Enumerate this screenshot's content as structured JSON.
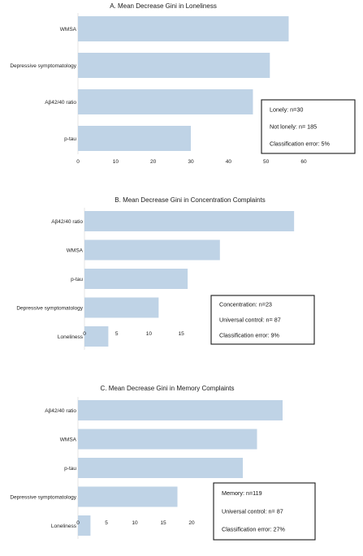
{
  "chart_data": [
    {
      "type": "bar",
      "orientation": "horizontal",
      "title": "A. Mean Decrease Gini in Loneliness",
      "categories": [
        "WMSA",
        "Depressive symptomatology",
        "Aβ42/40 ratio",
        "p-tau"
      ],
      "values": [
        56,
        51,
        46.5,
        30
      ],
      "xlim": [
        0,
        60
      ],
      "xticks": [
        0,
        10,
        20,
        30,
        40,
        50,
        60
      ],
      "bar_color": "#bfd3e6",
      "legend_placement": "bottom-right",
      "info_box": [
        "Lonely: n=30",
        "Not lonely: n= 185",
        "Classification error: 5%"
      ]
    },
    {
      "type": "bar",
      "orientation": "horizontal",
      "title": "B. Mean Decrease Gini in Concentration Complaints",
      "categories": [
        "Aβ42/40 ratio",
        "WMSA",
        "p-tau",
        "Depressive symptomatology",
        "Loneliness"
      ],
      "values": [
        32.5,
        21,
        16,
        11.5,
        3.7
      ],
      "xlim": [
        0,
        35
      ],
      "xticks": [
        0,
        5,
        10,
        15,
        20,
        25,
        30,
        35
      ],
      "bar_color": "#bfd3e6",
      "legend_placement": "bottom-right",
      "info_box": [
        "Concentration: n=23",
        "Universal control: n= 87",
        "Classification error: 9%"
      ]
    },
    {
      "type": "bar",
      "orientation": "horizontal",
      "title": "C. Mean Decrease Gini in Memory Complaints",
      "categories": [
        "Aβ42/40 ratio",
        "WMSA",
        "p-tau",
        "Depressive symptomatology",
        "Loneliness"
      ],
      "values": [
        36,
        31.5,
        29,
        17.5,
        2.2
      ],
      "xlim": [
        0,
        40
      ],
      "xticks": [
        0,
        5,
        10,
        15,
        20,
        25,
        30,
        35,
        40
      ],
      "bar_color": "#bfd3e6",
      "legend_placement": "bottom-right",
      "info_box": [
        "Memory: n=119",
        "Universal control: n= 87",
        "Classification error: 27%"
      ]
    }
  ]
}
